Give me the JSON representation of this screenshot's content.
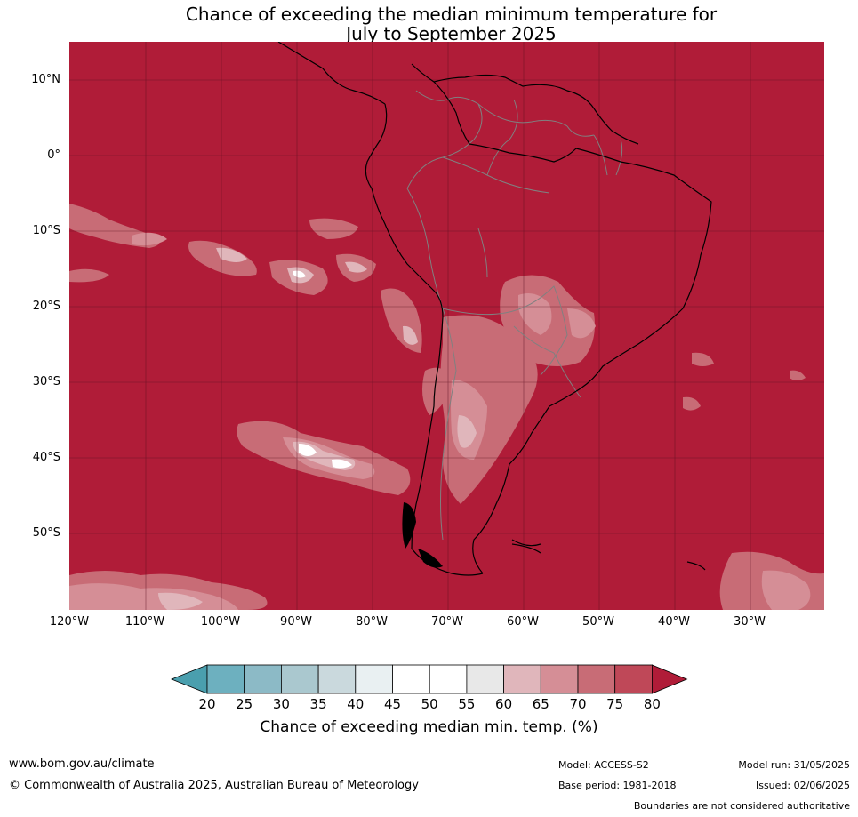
{
  "title": {
    "line1": "Chance of exceeding the median minimum temperature for",
    "line2": "July to September 2025"
  },
  "map": {
    "lat_labels": [
      "10°N",
      "0°",
      "10°S",
      "20°S",
      "30°S",
      "40°S",
      "50°S"
    ],
    "lon_labels": [
      "120°W",
      "110°W",
      "100°W",
      "90°W",
      "80°W",
      "70°W",
      "60°W",
      "50°W",
      "40°W",
      "30°W"
    ],
    "background_color": "#b01c38"
  },
  "colorbar": {
    "ticks": [
      "20",
      "25",
      "30",
      "35",
      "40",
      "45",
      "50",
      "55",
      "60",
      "65",
      "70",
      "75",
      "80"
    ],
    "colors": [
      "#4a9fae",
      "#6db0bf",
      "#8cbac6",
      "#aac8cf",
      "#cad9dd",
      "#e9f0f2",
      "#ffffff",
      "#ffffff",
      "#e8e8e8",
      "#e0b6bb",
      "#d58e96",
      "#c86c76",
      "#bf4858",
      "#b01c38"
    ],
    "label": "Chance of exceeding median min. temp. (%)"
  },
  "footer": {
    "website": "www.bom.gov.au/climate",
    "copyright": "© Commonwealth of Australia 2025, Australian Bureau of Meteorology",
    "model": "Model: ACCESS-S2",
    "base_period": "Base period: 1981-2018",
    "model_run": "Model run: 31/05/2025",
    "issued": "Issued: 02/06/2025",
    "disclaimer": "Boundaries are not considered authoritative"
  }
}
